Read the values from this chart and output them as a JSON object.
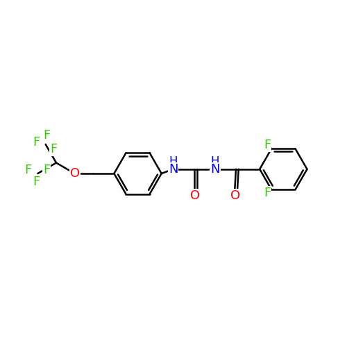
{
  "bg_color": "#ffffff",
  "bond_color": "#000000",
  "nitrogen_color": "#0000ff",
  "oxygen_color": "#ff0000",
  "fluorine_color": "#33cc00",
  "bond_lw": 1.8,
  "font_size": 13,
  "figsize": [
    5.0,
    5.0
  ],
  "dpi": 100,
  "xlim": [
    -1.0,
    11.0
  ],
  "ylim": [
    1.5,
    8.5
  ]
}
